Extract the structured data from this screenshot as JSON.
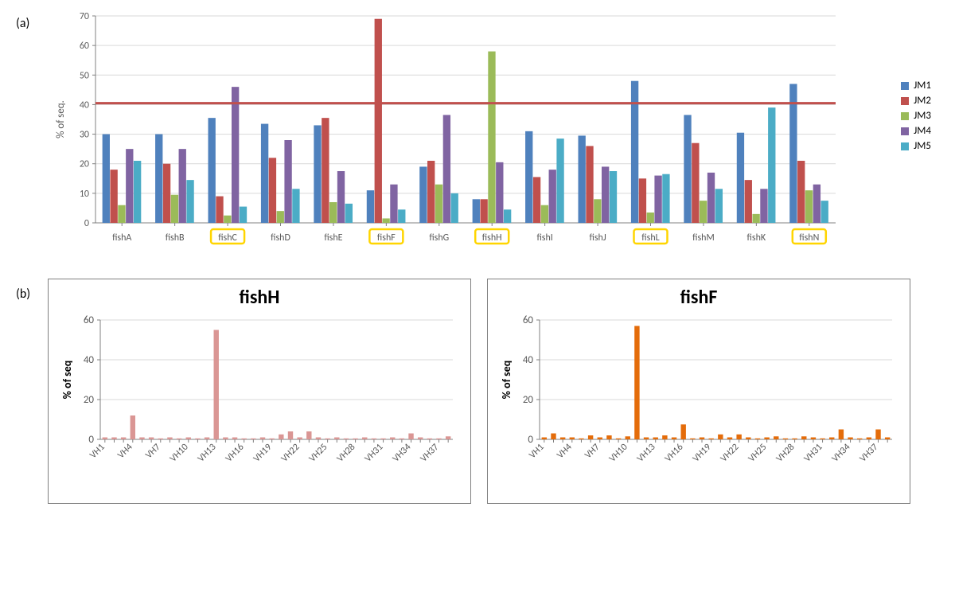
{
  "panel_a": {
    "label": "(a)",
    "chart": {
      "type": "grouped-bar",
      "ylabel": "% of seq.",
      "ylim": [
        0,
        70
      ],
      "ytick_step": 10,
      "grid_color": "#d9d9d9",
      "axis_color": "#808080",
      "threshold_line": {
        "y": 40.5,
        "color": "#c0504d",
        "stroke_width": 3
      },
      "categories": [
        "fishA",
        "fishB",
        "fishC",
        "fishD",
        "fishE",
        "fishF",
        "fishG",
        "fishH",
        "fishI",
        "fishJ",
        "fishL",
        "fishM",
        "fishK",
        "fishN"
      ],
      "highlighted": [
        "fishC",
        "fishF",
        "fishH",
        "fishL",
        "fishN"
      ],
      "highlight_border": "#ffd500",
      "series": [
        {
          "name": "JM1",
          "color": "#4f81bd"
        },
        {
          "name": "JM2",
          "color": "#c0504d"
        },
        {
          "name": "JM3",
          "color": "#9bbb59"
        },
        {
          "name": "JM4",
          "color": "#8064a2"
        },
        {
          "name": "JM5",
          "color": "#4bacc6"
        }
      ],
      "data": {
        "fishA": [
          30,
          18,
          6,
          25,
          21
        ],
        "fishB": [
          30,
          20,
          9.5,
          25,
          14.5
        ],
        "fishC": [
          35.5,
          9,
          2.5,
          46,
          5.5
        ],
        "fishD": [
          33.5,
          22,
          4,
          28,
          11.5
        ],
        "fishE": [
          33,
          35.5,
          7,
          17.5,
          6.5
        ],
        "fishF": [
          11,
          69,
          1.5,
          13,
          4.5
        ],
        "fishG": [
          19,
          21,
          13,
          36.5,
          10
        ],
        "fishH": [
          8,
          8,
          58,
          20.5,
          4.5
        ],
        "fishI": [
          31,
          15.5,
          6,
          18,
          28.5
        ],
        "fishJ": [
          29.5,
          26,
          8,
          19,
          17.5
        ],
        "fishL": [
          48,
          15,
          3.5,
          16,
          16.5
        ],
        "fishM": [
          36.5,
          27,
          7.5,
          17,
          11.5
        ],
        "fishK": [
          30.5,
          14.5,
          3,
          11.5,
          39
        ],
        "fishN": [
          47,
          21,
          11,
          13,
          7.5
        ]
      },
      "label_fontsize": 13,
      "tick_fontsize": 12
    }
  },
  "panel_b": {
    "label": "(b)",
    "subpanels": [
      {
        "title": "fishH",
        "chart": {
          "type": "bar",
          "ylabel": "% of seq",
          "ylim": [
            0,
            60
          ],
          "ytick_step": 20,
          "bar_color": "#da9694",
          "grid_color": "#d9d9d9",
          "categories_start": 1,
          "categories_end": 38,
          "xticks_shown": [
            "VH1",
            "VH4",
            "VH7",
            "VH10",
            "VH13",
            "VH16",
            "VH19",
            "VH22",
            "VH25",
            "VH28",
            "VH31",
            "VH34",
            "VH37"
          ],
          "values": [
            1,
            1,
            1,
            12,
            1,
            1,
            0.5,
            1,
            0.5,
            1,
            0.5,
            1,
            55,
            1,
            1,
            0.5,
            0.5,
            1,
            0.5,
            2.5,
            4,
            1,
            4,
            1,
            0.5,
            1,
            0.5,
            0.5,
            1,
            0.5,
            0.5,
            1,
            0.5,
            3,
            1,
            0.5,
            0.5,
            1.5
          ]
        }
      },
      {
        "title": "fishF",
        "chart": {
          "type": "bar",
          "ylabel": "% of seq",
          "ylim": [
            0,
            60
          ],
          "ytick_step": 20,
          "bar_color": "#e46c0a",
          "grid_color": "#d9d9d9",
          "categories_start": 1,
          "categories_end": 38,
          "xticks_shown": [
            "VH1",
            "VH4",
            "VH7",
            "VH10",
            "VH13",
            "VH16",
            "VH19",
            "VH22",
            "VH25",
            "VH28",
            "VH31",
            "VH34",
            "VH37"
          ],
          "values": [
            1,
            3,
            1,
            1,
            0.5,
            2,
            1,
            2,
            0.5,
            1.5,
            57,
            1,
            1,
            2,
            1,
            7.5,
            0.5,
            1,
            0.5,
            2.5,
            1,
            2.5,
            1,
            0.5,
            1,
            1.5,
            0.5,
            0.5,
            1.5,
            1,
            0.5,
            1,
            5,
            1,
            0.5,
            1,
            5,
            1
          ]
        }
      }
    ]
  }
}
